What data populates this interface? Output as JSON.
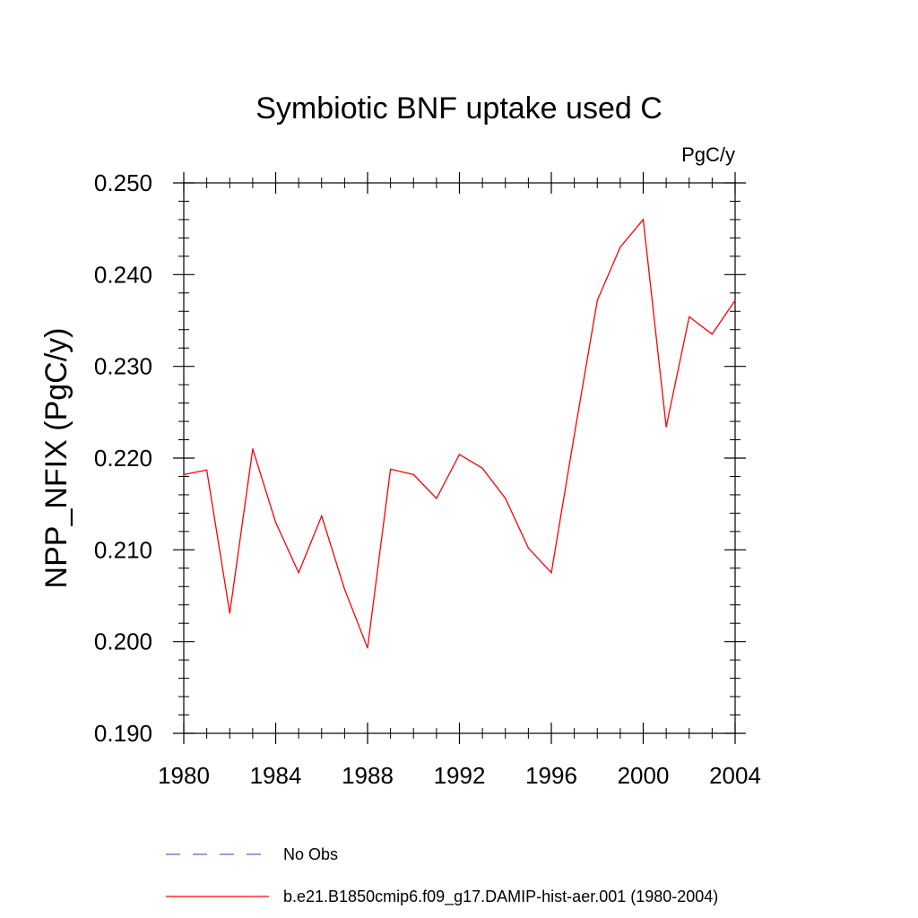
{
  "chart_data": {
    "type": "line",
    "title": "Symbiotic BNF uptake used C",
    "units": "PgC/y",
    "xlabel": "",
    "ylabel": "NPP_NFIX  (PgC/y)",
    "xlim": [
      1980,
      2004
    ],
    "ylim": [
      0.19,
      0.25
    ],
    "x_ticks": [
      "1980",
      "1984",
      "1988",
      "1992",
      "1996",
      "2000",
      "2004"
    ],
    "y_ticks": [
      "0.190",
      "0.200",
      "0.210",
      "0.220",
      "0.230",
      "0.240",
      "0.250"
    ],
    "grid": false,
    "legend_position": "bottom",
    "x": [
      1980,
      1981,
      1982,
      1983,
      1984,
      1985,
      1986,
      1987,
      1988,
      1989,
      1990,
      1991,
      1992,
      1993,
      1994,
      1995,
      1996,
      1997,
      1998,
      1999,
      2000,
      2001,
      2002,
      2003,
      2004
    ],
    "series": [
      {
        "name": "b.e21.B1850cmip6.f09_g17.DAMIP-hist-aer.001 (1980-2004)",
        "color": "#ff0000",
        "values": [
          0.2182,
          0.2187,
          0.2031,
          0.221,
          0.213,
          0.2075,
          0.2137,
          0.2057,
          0.1993,
          0.2188,
          0.2182,
          0.2156,
          0.2204,
          0.2189,
          0.2156,
          0.2102,
          0.2075,
          0.2225,
          0.2372,
          0.243,
          0.246,
          0.2234,
          0.2354,
          0.2335,
          0.2372
        ]
      }
    ],
    "legend": [
      {
        "label": "No Obs",
        "color": "#6a5acd",
        "style": "dashed"
      },
      {
        "label": "b.e21.B1850cmip6.f09_g17.DAMIP-hist-aer.001 (1980-2004)",
        "color": "#ff0000",
        "style": "solid"
      }
    ]
  }
}
